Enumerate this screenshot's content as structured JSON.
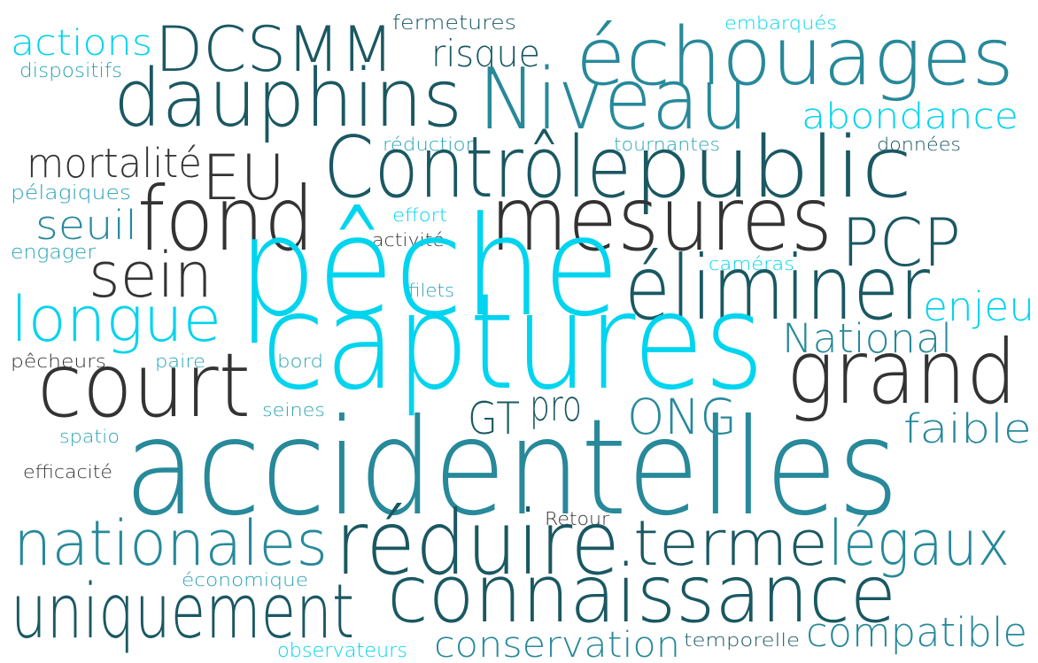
{
  "words": [
    "fermetures",
    "embarqués",
    "actions",
    "DCSMM",
    "risque",
    "échouages",
    "dispositifs",
    "dauphins",
    "Niveau",
    "abondance",
    "réduction",
    "tournantes",
    "données",
    "mortalité",
    "EU",
    "Contrôle",
    "public",
    "pélagiques",
    "fond",
    "mesures",
    "seuil",
    "effort",
    "activité",
    "PCP",
    "engager",
    "sein",
    "pêche",
    "caméras",
    "éliminer",
    "filets",
    "longue",
    "enjeu",
    "National",
    "captures",
    "pêcheurs",
    "paire",
    "bord",
    "court",
    "grand",
    "seines",
    "GT",
    "pro",
    "ONG",
    "faible",
    "spatio",
    "accidentelles",
    "efficacité",
    "Retour",
    "nationales",
    "réduire",
    "terme",
    "légaux",
    "économique",
    "connaissance",
    "uniquement",
    "observateurs",
    "conservation",
    "temporelle",
    "compatible"
  ]
}
